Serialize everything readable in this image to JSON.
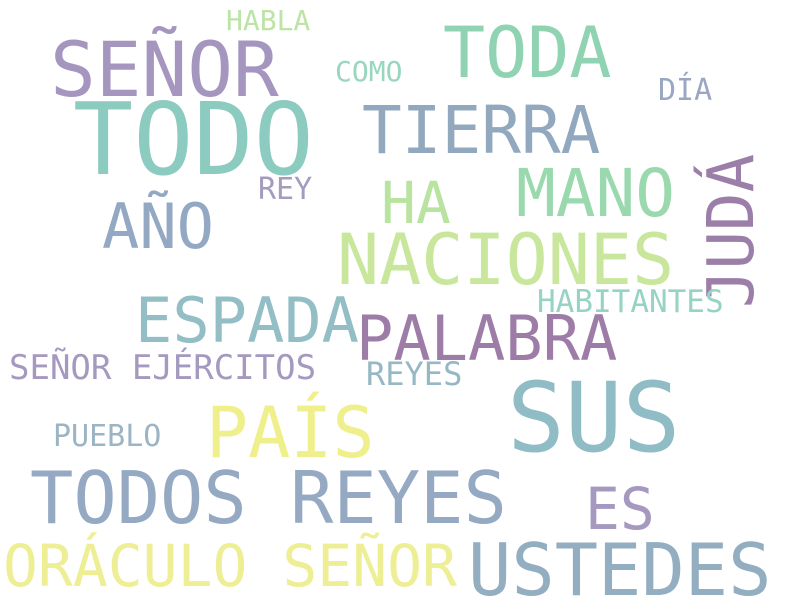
{
  "words": [
    {
      "text": "HABLA",
      "color": "#bde3a6"
    },
    {
      "text": "SEÑOR",
      "color": "#a596c0"
    },
    {
      "text": "TODA",
      "color": "#8fd3b2"
    },
    {
      "text": "COMO",
      "color": "#97d7bd"
    },
    {
      "text": "DÍA",
      "color": "#9aa7c3"
    },
    {
      "text": "TODO",
      "color": "#8ccbbf"
    },
    {
      "text": "TIERRA",
      "color": "#91a8be"
    },
    {
      "text": "JUDÁ",
      "color": "#9c7fa8"
    },
    {
      "text": "REY",
      "color": "#a49bbf"
    },
    {
      "text": "HA",
      "color": "#b8e49f"
    },
    {
      "text": "MANO",
      "color": "#9ad9ae"
    },
    {
      "text": "AÑO",
      "color": "#93a8c2"
    },
    {
      "text": "NACIONES",
      "color": "#c8e79d"
    },
    {
      "text": "HABITANTES",
      "color": "#97d3c4"
    },
    {
      "text": "ESPADA",
      "color": "#93bec5"
    },
    {
      "text": "PALABRA",
      "color": "#9d7ca7"
    },
    {
      "text": "SEÑOR EJÉRCITOS",
      "color": "#a599bf"
    },
    {
      "text": "REYES",
      "color": "#96b7c4"
    },
    {
      "text": "SUS",
      "color": "#8fbcc5"
    },
    {
      "text": "PAÍS",
      "color": "#eff08b"
    },
    {
      "text": "PUEBLO",
      "color": "#9cb4c4"
    },
    {
      "text": "TODOS REYES",
      "color": "#95a9c3"
    },
    {
      "text": "ES",
      "color": "#a599bf"
    },
    {
      "text": "ORÁCULO SEÑOR",
      "color": "#eeef95"
    },
    {
      "text": "USTEDES",
      "color": "#93aec1"
    }
  ]
}
